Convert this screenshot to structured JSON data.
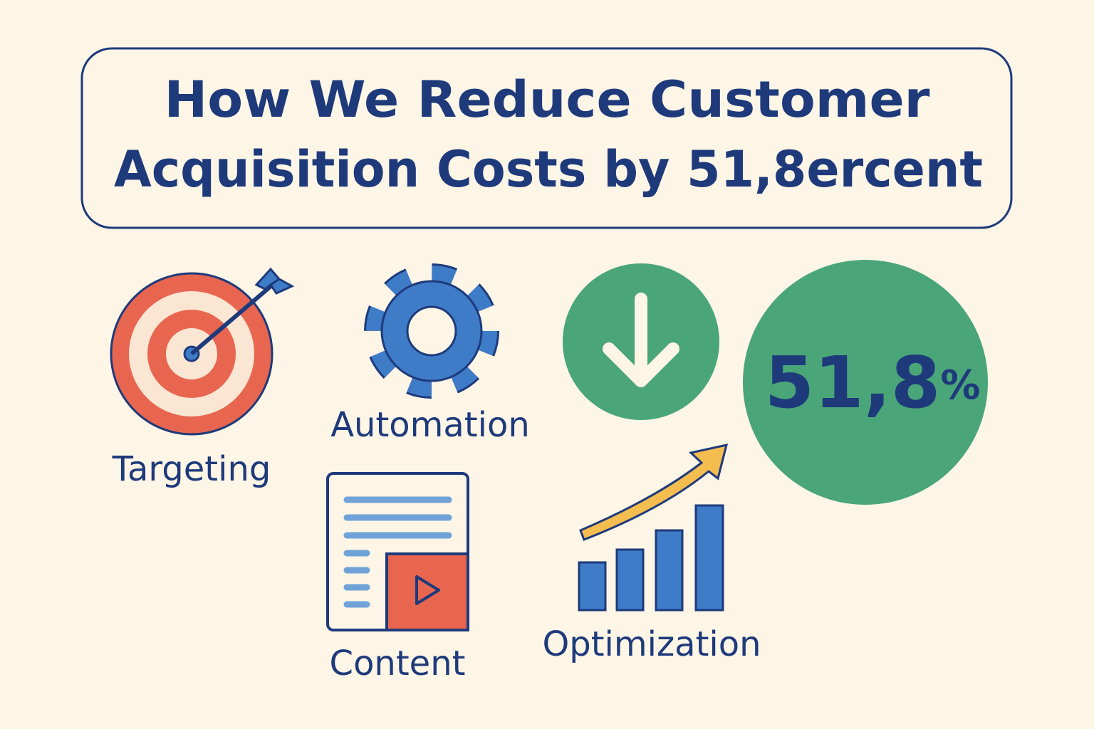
{
  "title": [
    "How We Reduce Customer",
    "Acquisition Costs by 51,8ercent"
  ],
  "items": {
    "targeting": "Targeting",
    "automation": "Automation",
    "content": "Content",
    "optimization": "Optimization"
  },
  "stat": {
    "value": "51,8",
    "unit": "%"
  }
}
